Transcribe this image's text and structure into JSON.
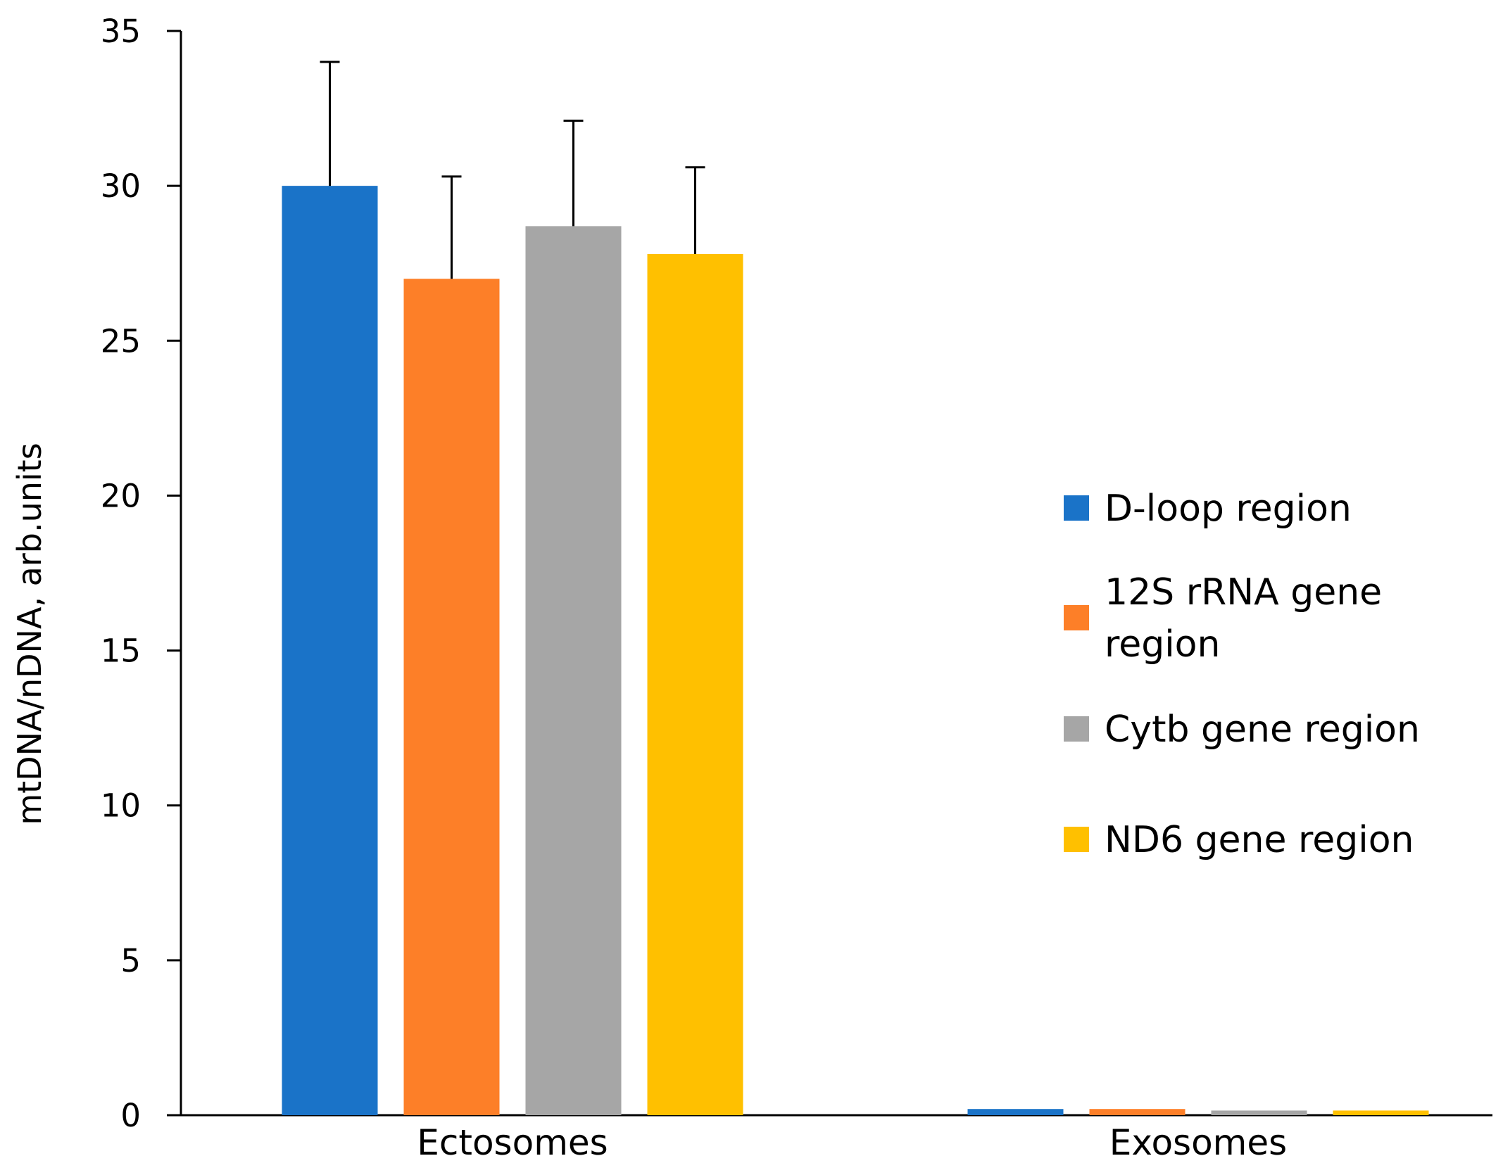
{
  "chart_data": {
    "type": "bar",
    "title": "",
    "xlabel": "",
    "ylabel": "mtDNA/nDNA, arb.units",
    "ylim": [
      0,
      35
    ],
    "yticks": [
      0,
      5,
      10,
      15,
      20,
      25,
      30,
      35
    ],
    "grid": false,
    "legend_position": "right",
    "categories": [
      "Ectosomes",
      "Exosomes"
    ],
    "series": [
      {
        "name": "D-loop region",
        "legend_lines": [
          "D-loop region"
        ],
        "color": "#1a73c8",
        "values": [
          30.0,
          0.2
        ],
        "errors": [
          4.0,
          0
        ]
      },
      {
        "name": "12S rRNA gene region",
        "legend_lines": [
          "12S rRNA gene",
          "region"
        ],
        "color": "#fd7f28",
        "values": [
          27.0,
          0.2
        ],
        "errors": [
          3.3,
          0
        ]
      },
      {
        "name": "Cytb gene region",
        "legend_lines": [
          "Cytb gene region"
        ],
        "color": "#a6a6a6",
        "values": [
          28.7,
          0.15
        ],
        "errors": [
          3.4,
          0
        ]
      },
      {
        "name": "ND6 gene region",
        "legend_lines": [
          "ND6 gene region"
        ],
        "color": "#ffc000",
        "values": [
          27.8,
          0.15
        ],
        "errors": [
          2.8,
          0
        ]
      }
    ]
  }
}
